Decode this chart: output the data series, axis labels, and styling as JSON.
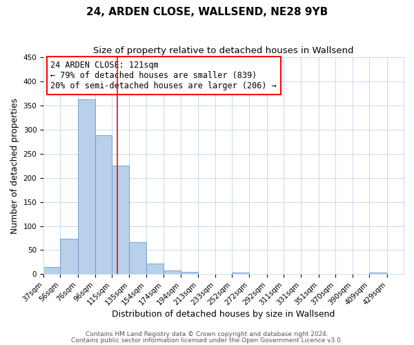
{
  "title": "24, ARDEN CLOSE, WALLSEND, NE28 9YB",
  "subtitle": "Size of property relative to detached houses in Wallsend",
  "xlabel": "Distribution of detached houses by size in Wallsend",
  "ylabel": "Number of detached properties",
  "bar_color": "#b8d0ea",
  "bar_edge_color": "#6699cc",
  "background_color": "#ffffff",
  "grid_color": "#c8d8ec",
  "categories": [
    "37sqm",
    "56sqm",
    "76sqm",
    "96sqm",
    "115sqm",
    "135sqm",
    "154sqm",
    "174sqm",
    "194sqm",
    "213sqm",
    "233sqm",
    "252sqm",
    "272sqm",
    "292sqm",
    "311sqm",
    "331sqm",
    "351sqm",
    "370sqm",
    "390sqm",
    "409sqm",
    "429sqm"
  ],
  "values": [
    15,
    73,
    363,
    289,
    225,
    67,
    22,
    8,
    5,
    0,
    0,
    3,
    0,
    0,
    0,
    0,
    0,
    0,
    0,
    4,
    0
  ],
  "property_line_x": 121,
  "bin_edges": [
    37,
    56,
    76,
    96,
    115,
    135,
    154,
    174,
    194,
    213,
    233,
    252,
    272,
    292,
    311,
    331,
    351,
    370,
    390,
    409,
    429,
    448
  ],
  "ylim": [
    0,
    450
  ],
  "yticks": [
    0,
    50,
    100,
    150,
    200,
    250,
    300,
    350,
    400,
    450
  ],
  "annotation_title": "24 ARDEN CLOSE: 121sqm",
  "annotation_line1": "← 79% of detached houses are smaller (839)",
  "annotation_line2": "20% of semi-detached houses are larger (206) →",
  "footer1": "Contains HM Land Registry data © Crown copyright and database right 2024.",
  "footer2": "Contains public sector information licensed under the Open Government Licence v3.0.",
  "title_fontsize": 11,
  "subtitle_fontsize": 9.5,
  "axis_label_fontsize": 9,
  "tick_fontsize": 7.5,
  "annotation_fontsize": 8.5,
  "footer_fontsize": 6.5
}
